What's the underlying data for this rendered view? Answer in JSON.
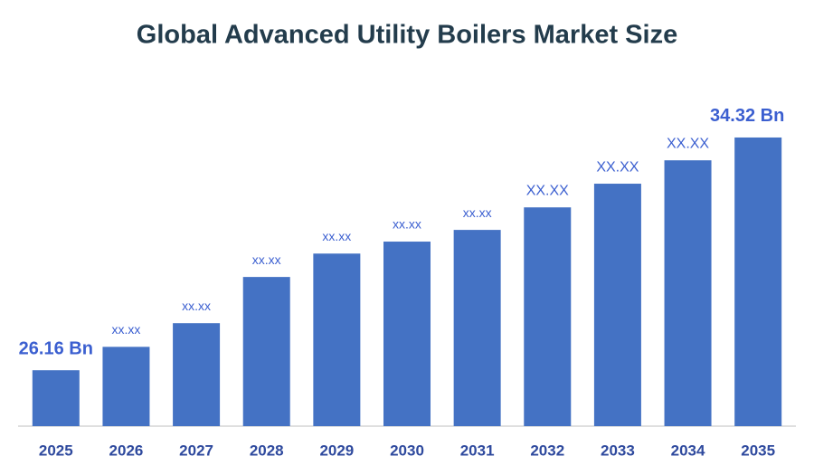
{
  "chart_data": {
    "type": "bar",
    "title": "Global Advanced Utility Boilers Market Size",
    "categories": [
      "2025",
      "2026",
      "2027",
      "2028",
      "2029",
      "2030",
      "2031",
      "2032",
      "2033",
      "2034",
      "2035"
    ],
    "values": [
      26.16,
      26.98,
      27.81,
      29.43,
      30.25,
      30.67,
      31.08,
      31.87,
      32.7,
      33.52,
      34.32
    ],
    "value_labels": [
      "26.16 Bn",
      "xx.xx",
      "xx.xx",
      "xx.xx",
      "xx.xx",
      "xx.xx",
      "xx.xx",
      "XX.XX",
      "XX.XX",
      "XX.XX",
      "34.32 Bn"
    ],
    "color": "#4472c4",
    "ylim": [
      24.2,
      36
    ]
  }
}
